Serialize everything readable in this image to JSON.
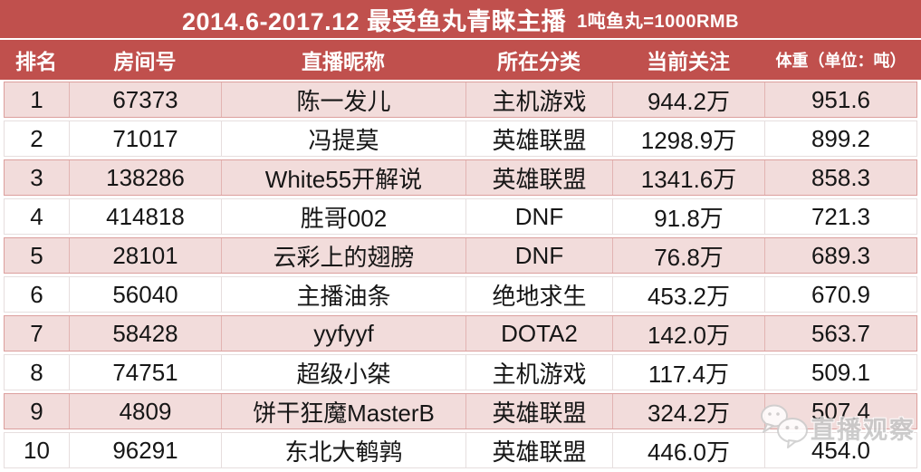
{
  "title": {
    "main": "2014.6-2017.12  最受鱼丸青睐主播",
    "note": "1吨鱼丸=1000RMB"
  },
  "table": {
    "columns": [
      {
        "key": "rank",
        "label": "排名"
      },
      {
        "key": "room",
        "label": "房间号"
      },
      {
        "key": "nickname",
        "label": "直播昵称"
      },
      {
        "key": "category",
        "label": "所在分类"
      },
      {
        "key": "followers",
        "label": "当前关注"
      },
      {
        "key": "weight",
        "label": "体重（单位：吨）"
      }
    ],
    "rows": [
      {
        "rank": "1",
        "room": "67373",
        "nickname": "陈一发儿",
        "category": "主机游戏",
        "followers": "944.2万",
        "weight": "951.6"
      },
      {
        "rank": "2",
        "room": "71017",
        "nickname": "冯提莫",
        "category": "英雄联盟",
        "followers": "1298.9万",
        "weight": "899.2"
      },
      {
        "rank": "3",
        "room": "138286",
        "nickname": "White55开解说",
        "category": "英雄联盟",
        "followers": "1341.6万",
        "weight": "858.3"
      },
      {
        "rank": "4",
        "room": "414818",
        "nickname": "胜哥002",
        "category": "DNF",
        "followers": "91.8万",
        "weight": "721.3"
      },
      {
        "rank": "5",
        "room": "28101",
        "nickname": "云彩上的翅膀",
        "category": "DNF",
        "followers": "76.8万",
        "weight": "689.3"
      },
      {
        "rank": "6",
        "room": "56040",
        "nickname": "主播油条",
        "category": "绝地求生",
        "followers": "453.2万",
        "weight": "670.9"
      },
      {
        "rank": "7",
        "room": "58428",
        "nickname": "yyfyyf",
        "category": "DOTA2",
        "followers": "142.0万",
        "weight": "563.7"
      },
      {
        "rank": "8",
        "room": "74751",
        "nickname": "超级小桀",
        "category": "主机游戏",
        "followers": "117.4万",
        "weight": "509.1"
      },
      {
        "rank": "9",
        "room": "4809",
        "nickname": "饼干狂魔MasterB",
        "category": "英雄联盟",
        "followers": "324.2万",
        "weight": "507.4"
      },
      {
        "rank": "10",
        "room": "96291",
        "nickname": "东北大鹌鹑",
        "category": "英雄联盟",
        "followers": "446.0万",
        "weight": "454.0"
      }
    ]
  },
  "watermark": {
    "text": "直播观察",
    "icon": "wechat-icon"
  },
  "colors": {
    "accent_red": "#C0504D",
    "row_pink": "#F2DCDB",
    "row_white": "#FFFFFF",
    "pink_border": "#DC9F9D",
    "white_border": "#E6DEDE",
    "text": "#161616",
    "watermark_gray": "#C4C4C4"
  },
  "chart_data": {
    "type": "table",
    "title": "2014.6-2017.12 最受鱼丸青睐主播",
    "subtitle": "1吨鱼丸=1000RMB",
    "columns": [
      "排名",
      "房间号",
      "直播昵称",
      "所在分类",
      "当前关注",
      "体重（单位：吨）"
    ],
    "rows": [
      [
        1,
        67373,
        "陈一发儿",
        "主机游戏",
        "944.2万",
        951.6
      ],
      [
        2,
        71017,
        "冯提莫",
        "英雄联盟",
        "1298.9万",
        899.2
      ],
      [
        3,
        138286,
        "White55开解说",
        "英雄联盟",
        "1341.6万",
        858.3
      ],
      [
        4,
        414818,
        "胜哥002",
        "DNF",
        "91.8万",
        721.3
      ],
      [
        5,
        28101,
        "云彩上的翅膀",
        "DNF",
        "76.8万",
        689.3
      ],
      [
        6,
        56040,
        "主播油条",
        "绝地求生",
        "453.2万",
        670.9
      ],
      [
        7,
        58428,
        "yyfyyf",
        "DOTA2",
        "142.0万",
        563.7
      ],
      [
        8,
        74751,
        "超级小桀",
        "主机游戏",
        "117.4万",
        509.1
      ],
      [
        9,
        4809,
        "饼干狂魔MasterB",
        "英雄联盟",
        "324.2万",
        507.4
      ],
      [
        10,
        96291,
        "东北大鹌鹑",
        "英雄联盟",
        "446.0万",
        454.0
      ]
    ],
    "layout": {
      "zebra_striping": true,
      "odd_row_fill": "#F2DCDB",
      "header_fill": "#C0504D"
    }
  }
}
